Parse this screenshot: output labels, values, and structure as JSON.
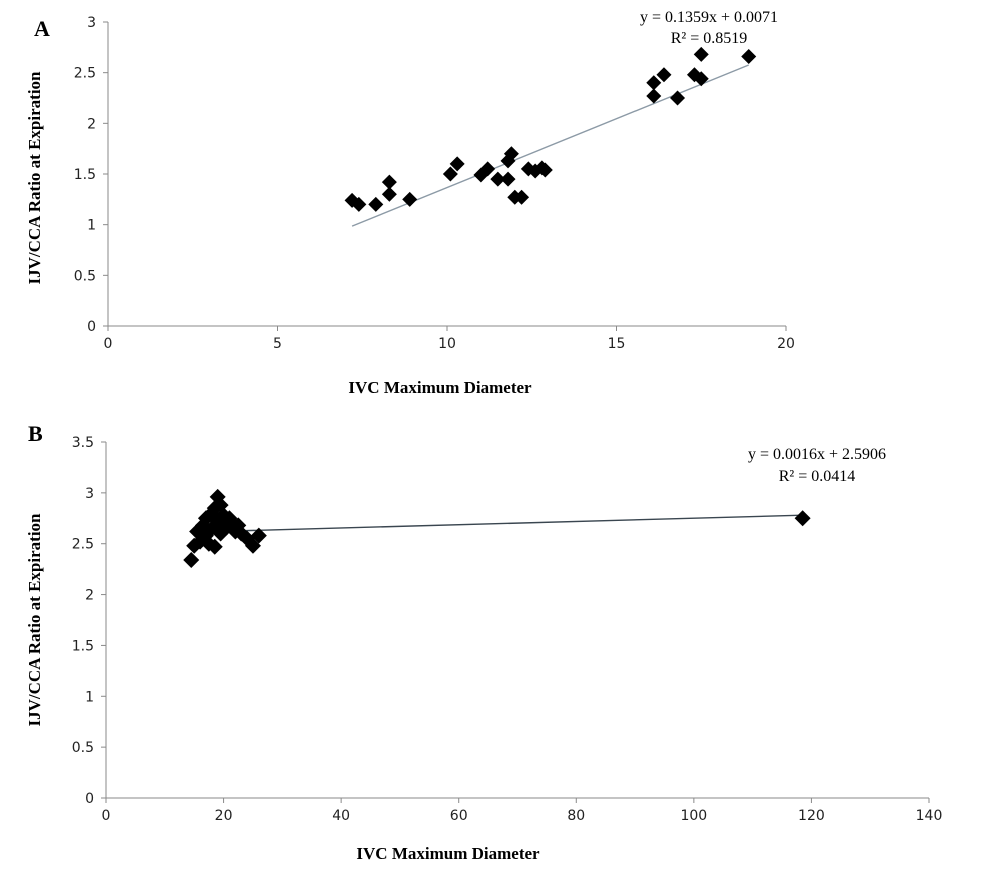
{
  "chart_data": [
    {
      "type": "scatter",
      "panel_label": "A",
      "xlabel": "IVC Maximum Diameter",
      "ylabel": "IJV/CCA Ratio at Expiration",
      "xlim": [
        0,
        20
      ],
      "ylim": [
        0,
        3
      ],
      "xticks": [
        0,
        5,
        10,
        15,
        20
      ],
      "yticks": [
        0,
        0.5,
        1,
        1.5,
        2,
        2.5,
        3
      ],
      "grid": false,
      "marker": "diamond",
      "marker_color": "#000000",
      "trendline_color": "#8c9aa6",
      "trendline": {
        "slope": 0.1359,
        "intercept": 0.0071,
        "x_range": [
          7.2,
          18.9
        ]
      },
      "equation": "y = 0.1359x + 0.0071",
      "r_squared": "R² = 0.8519",
      "points": [
        [
          7.2,
          1.24
        ],
        [
          7.4,
          1.2
        ],
        [
          7.9,
          1.2
        ],
        [
          8.3,
          1.42
        ],
        [
          8.3,
          1.3
        ],
        [
          8.9,
          1.25
        ],
        [
          10.1,
          1.5
        ],
        [
          10.3,
          1.6
        ],
        [
          11.0,
          1.49
        ],
        [
          11.2,
          1.55
        ],
        [
          11.5,
          1.45
        ],
        [
          11.8,
          1.45
        ],
        [
          11.8,
          1.63
        ],
        [
          11.9,
          1.7
        ],
        [
          12.0,
          1.27
        ],
        [
          12.2,
          1.27
        ],
        [
          12.4,
          1.55
        ],
        [
          12.6,
          1.53
        ],
        [
          12.8,
          1.56
        ],
        [
          12.9,
          1.54
        ],
        [
          16.1,
          2.4
        ],
        [
          16.1,
          2.27
        ],
        [
          16.4,
          2.48
        ],
        [
          16.8,
          2.25
        ],
        [
          17.3,
          2.48
        ],
        [
          17.5,
          2.44
        ],
        [
          17.5,
          2.68
        ],
        [
          18.9,
          2.66
        ]
      ]
    },
    {
      "type": "scatter",
      "panel_label": "B",
      "xlabel": "IVC Maximum Diameter",
      "ylabel": "IJV/CCA Ratio at Expiration",
      "xlim": [
        0,
        140
      ],
      "ylim": [
        0,
        3.5
      ],
      "xticks": [
        0,
        20,
        40,
        60,
        80,
        100,
        120,
        140
      ],
      "yticks": [
        0,
        0.5,
        1,
        1.5,
        2,
        2.5,
        3,
        3.5
      ],
      "grid": false,
      "marker": "diamond",
      "marker_color": "#000000",
      "trendline_color": "#3a4650",
      "trendline": {
        "slope": 0.0016,
        "intercept": 2.5906,
        "x_range": [
          15,
          118.5
        ]
      },
      "equation": "y = 0.0016x + 2.5906",
      "r_squared": "R² = 0.0414",
      "points": [
        [
          14.5,
          2.34
        ],
        [
          15.0,
          2.48
        ],
        [
          15.5,
          2.62
        ],
        [
          16.0,
          2.52
        ],
        [
          16.5,
          2.68
        ],
        [
          17.0,
          2.58
        ],
        [
          17.0,
          2.75
        ],
        [
          17.5,
          2.5
        ],
        [
          18.0,
          2.8
        ],
        [
          18.0,
          2.65
        ],
        [
          18.5,
          2.85
        ],
        [
          18.5,
          2.47
        ],
        [
          19.0,
          2.96
        ],
        [
          19.0,
          2.72
        ],
        [
          19.5,
          2.6
        ],
        [
          19.5,
          2.88
        ],
        [
          20.0,
          2.78
        ],
        [
          20.0,
          2.7
        ],
        [
          20.5,
          2.66
        ],
        [
          21.0,
          2.75
        ],
        [
          21.5,
          2.7
        ],
        [
          22.0,
          2.62
        ],
        [
          22.5,
          2.68
        ],
        [
          23.0,
          2.6
        ],
        [
          24.0,
          2.55
        ],
        [
          25.0,
          2.48
        ],
        [
          26.0,
          2.58
        ],
        [
          118.5,
          2.75
        ]
      ]
    }
  ]
}
